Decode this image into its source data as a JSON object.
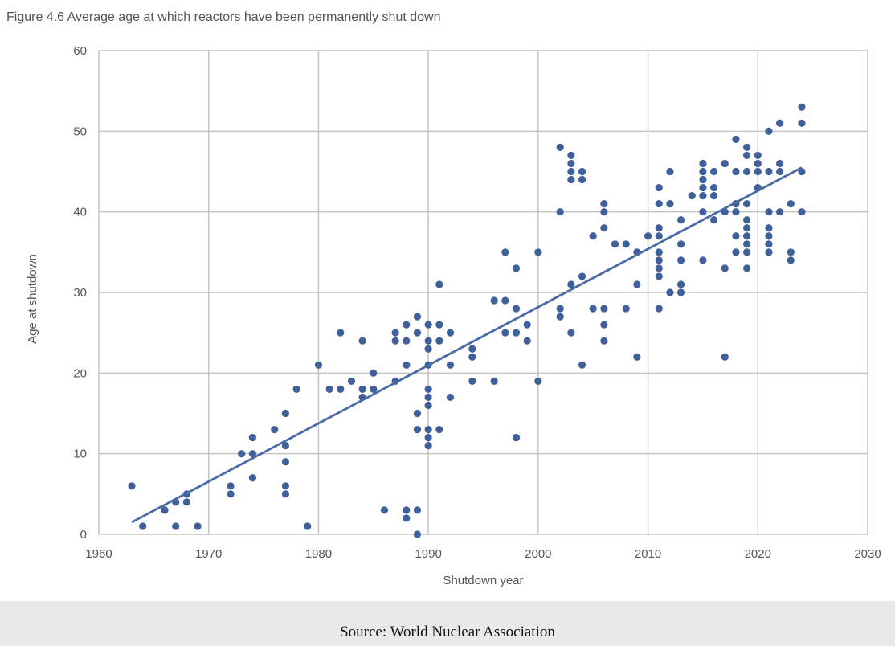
{
  "chart_data": {
    "type": "scatter",
    "title": "Figure 4.6 Average age at which reactors have been permanently shut down",
    "xlabel": "Shutdown year",
    "ylabel": "Age at shutdown",
    "xlim": [
      1960,
      2030
    ],
    "ylim": [
      0,
      60
    ],
    "xticks": [
      1960,
      1970,
      1980,
      1990,
      2000,
      2010,
      2020,
      2030
    ],
    "yticks": [
      0,
      10,
      20,
      30,
      40,
      50,
      60
    ],
    "grid": true,
    "point_color": "#40609a",
    "trendline": {
      "x": [
        1963,
        2024
      ],
      "y": [
        1.5,
        45.5
      ]
    },
    "points": {
      "1963": [
        6
      ],
      "1964": [
        1
      ],
      "1966": [
        3
      ],
      "1967": [
        4,
        1
      ],
      "1968": [
        5,
        4
      ],
      "1969": [
        1
      ],
      "1972": [
        6,
        5
      ],
      "1973": [
        10
      ],
      "1974": [
        12,
        10,
        7
      ],
      "1976": [
        13
      ],
      "1977": [
        15,
        11,
        9,
        6,
        5
      ],
      "1978": [
        18
      ],
      "1979": [
        1
      ],
      "1980": [
        21
      ],
      "1981": [
        18
      ],
      "1982": [
        25,
        18
      ],
      "1983": [
        19
      ],
      "1984": [
        24,
        18,
        17
      ],
      "1985": [
        20,
        18
      ],
      "1986": [
        3
      ],
      "1987": [
        25,
        24,
        19
      ],
      "1988": [
        26,
        24,
        21,
        3,
        2
      ],
      "1989": [
        27,
        25,
        15,
        13,
        3,
        0
      ],
      "1990": [
        26,
        24,
        23,
        21,
        18,
        17,
        16,
        13,
        12,
        11
      ],
      "1991": [
        31,
        26,
        24,
        13
      ],
      "1992": [
        25,
        21,
        17
      ],
      "1994": [
        23,
        22,
        19
      ],
      "1996": [
        29,
        19
      ],
      "1997": [
        35,
        29,
        25
      ],
      "1998": [
        33,
        28,
        25,
        12
      ],
      "1999": [
        26,
        24
      ],
      "2000": [
        35,
        19
      ],
      "2002": [
        48,
        40,
        28,
        27
      ],
      "2003": [
        47,
        46,
        45,
        44,
        31,
        25
      ],
      "2004": [
        45,
        44,
        32,
        21
      ],
      "2005": [
        37,
        28
      ],
      "2006": [
        41,
        40,
        38,
        28,
        26,
        24
      ],
      "2007": [
        36
      ],
      "2008": [
        36,
        28
      ],
      "2009": [
        35,
        31,
        22
      ],
      "2010": [
        37
      ],
      "2011": [
        43,
        41,
        38,
        37,
        35,
        34,
        33,
        32,
        28
      ],
      "2012": [
        45,
        41,
        30
      ],
      "2013": [
        39,
        36,
        34,
        31,
        30
      ],
      "2014": [
        42
      ],
      "2015": [
        46,
        45,
        44,
        43,
        42,
        40,
        34
      ],
      "2016": [
        45,
        43,
        42,
        39
      ],
      "2017": [
        46,
        40,
        33,
        22
      ],
      "2018": [
        49,
        45,
        41,
        40,
        37,
        35
      ],
      "2019": [
        48,
        47,
        45,
        41,
        39,
        38,
        37,
        36,
        35,
        33
      ],
      "2020": [
        47,
        46,
        45,
        43
      ],
      "2021": [
        50,
        45,
        40,
        38,
        37,
        36,
        35
      ],
      "2022": [
        51,
        46,
        45,
        40
      ],
      "2023": [
        41,
        35,
        34
      ],
      "2024": [
        53,
        51,
        45,
        40
      ]
    }
  },
  "source": "Source: World Nuclear Association"
}
